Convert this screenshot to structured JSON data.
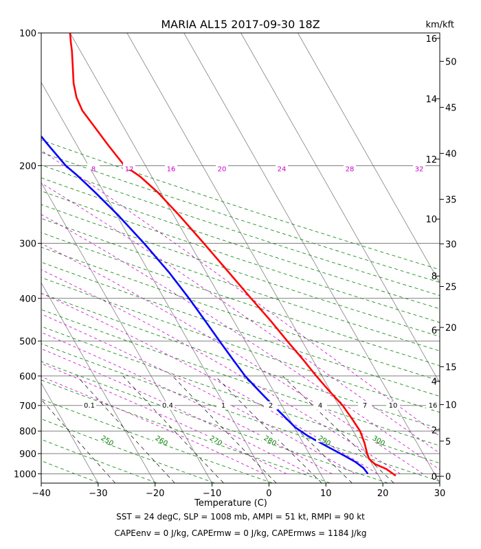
{
  "chart_data": {
    "type": "line",
    "title": "MARIA AL15 2017-09-30 18Z",
    "xlabel": "Temperature (C)",
    "ylabel": "",
    "height_label": "km/kft",
    "footer_lines": [
      "SST = 24 degC, SLP = 1008 mb, AMPI = 51 kt, RMPI = 90 kt",
      "CAPEenv = 0 J/kg, CAPErmw = 0 J/kg, CAPErmws = 1184 J/kg"
    ],
    "xlim": [
      -40,
      30
    ],
    "ylim": [
      1050,
      100
    ],
    "x_ticks": [
      -40,
      -30,
      -20,
      -10,
      0,
      10,
      20,
      30
    ],
    "x_tick_labels": [
      "−40",
      "−30",
      "−20",
      "−10",
      "0",
      "10",
      "20",
      "30"
    ],
    "pressure_ticks": [
      100,
      200,
      300,
      400,
      500,
      600,
      700,
      800,
      900,
      1000
    ],
    "pressure_tick_labels": [
      "100",
      "200",
      "300",
      "400",
      "500",
      "600",
      "700",
      "800",
      "900",
      "1000"
    ],
    "km_ticks": [
      0,
      2,
      4,
      6,
      8,
      10,
      12,
      14,
      16
    ],
    "km_tick_labels": [
      "0",
      "2",
      "4",
      "6",
      "8",
      "10",
      "12",
      "14",
      "16"
    ],
    "kft_ticks": [
      0,
      5,
      10,
      15,
      20,
      25,
      30,
      35,
      40,
      45,
      50
    ],
    "kft_tick_labels": [
      "0",
      "5",
      "10",
      "15",
      "20",
      "25",
      "30",
      "35",
      "40",
      "45",
      "50"
    ],
    "series": [
      {
        "color": "#ff0000",
        "points": [
          [
            23,
            1010
          ],
          [
            22,
            975
          ],
          [
            20.5,
            950
          ],
          [
            20,
            925
          ],
          [
            20.2,
            900
          ],
          [
            20.8,
            850
          ],
          [
            21.2,
            800
          ],
          [
            21,
            750
          ],
          [
            20.7,
            700
          ],
          [
            19.8,
            650
          ],
          [
            19,
            600
          ],
          [
            18.3,
            550
          ],
          [
            17.4,
            500
          ],
          [
            16.5,
            450
          ],
          [
            15.3,
            400
          ],
          [
            14,
            350
          ],
          [
            12.5,
            300
          ],
          [
            11,
            260
          ],
          [
            9.5,
            230
          ],
          [
            8,
            212
          ],
          [
            6.3,
            200
          ],
          [
            5.5,
            180
          ],
          [
            4.8,
            160
          ],
          [
            4.4,
            150
          ],
          [
            4.7,
            140
          ],
          [
            5.6,
            130
          ],
          [
            7,
            120
          ],
          [
            8.5,
            110
          ],
          [
            9.2,
            105
          ],
          [
            10,
            100
          ]
        ]
      },
      {
        "color": "#0000ff",
        "points": [
          [
            18.3,
            1000
          ],
          [
            18.1,
            970
          ],
          [
            17.3,
            940
          ],
          [
            16,
            910
          ],
          [
            14,
            870
          ],
          [
            11.5,
            820
          ],
          [
            10.2,
            785
          ],
          [
            9.5,
            750
          ],
          [
            8.5,
            700
          ],
          [
            7.5,
            650
          ],
          [
            6.5,
            600
          ],
          [
            6,
            550
          ],
          [
            5.5,
            500
          ],
          [
            5,
            450
          ],
          [
            4.4,
            400
          ],
          [
            3.5,
            350
          ],
          [
            2,
            300
          ],
          [
            0.3,
            260
          ],
          [
            -1.5,
            230
          ],
          [
            -3,
            210
          ],
          [
            -4,
            200
          ],
          [
            -5,
            180
          ],
          [
            -6,
            160
          ],
          [
            -6.8,
            150
          ],
          [
            -6.9,
            140
          ],
          [
            -6.7,
            130
          ],
          [
            -6,
            120
          ],
          [
            -4.8,
            110
          ],
          [
            -3.6,
            105
          ],
          [
            -2.8,
            100
          ]
        ]
      }
    ],
    "dry_adiabat_labels": [
      "250",
      "260",
      "270",
      "280",
      "290",
      "300"
    ],
    "dry_adiabat_values": [
      250,
      260,
      270,
      280,
      290,
      300
    ],
    "moist_adiabat_labels": [
      "8",
      "12",
      "16",
      "20",
      "24",
      "28",
      "32"
    ],
    "moist_adiabat_values": [
      8,
      12,
      16,
      20,
      24,
      28,
      32
    ],
    "mixing_ratio_labels": [
      "0.1",
      "0.4",
      "1",
      "2",
      "4",
      "7",
      "10",
      "16"
    ],
    "mixing_ratio_values": [
      0.1,
      0.4,
      1,
      2,
      4,
      7,
      10,
      16
    ],
    "colors": {
      "temperature": "#ff0000",
      "dewpoint": "#0000ff",
      "dry_adiabat": "#008000",
      "moist_adiabat": "#cc00cc",
      "mixing_ratio": "#000000",
      "isotherm": "#808080"
    }
  }
}
